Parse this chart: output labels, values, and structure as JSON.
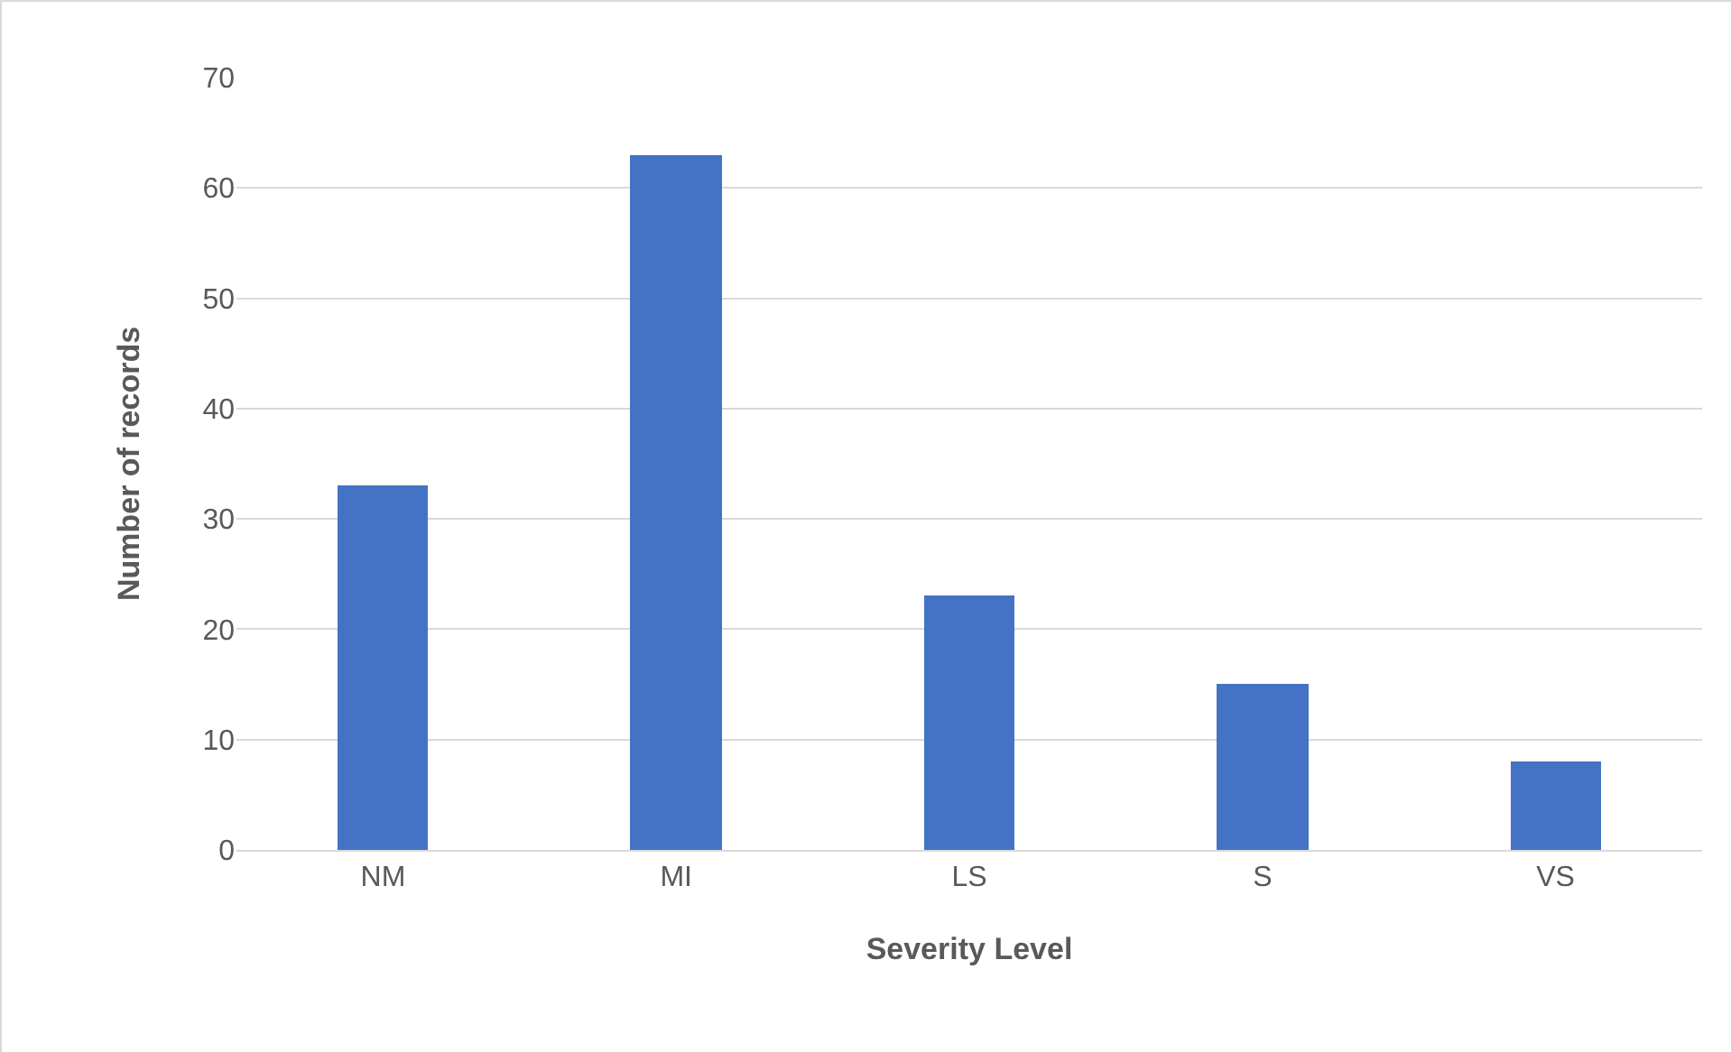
{
  "chart_data": {
    "type": "bar",
    "xlabel": "Severity Level",
    "ylabel": "Number of records",
    "categories": [
      "NM",
      "MI",
      "LS",
      "S",
      "VS"
    ],
    "values": [
      33,
      63,
      23,
      15,
      8
    ],
    "color": "#4472c4",
    "ylim": [
      0,
      70
    ],
    "yticks": [
      0,
      10,
      20,
      30,
      40,
      50,
      60,
      70
    ],
    "grid": "y"
  }
}
